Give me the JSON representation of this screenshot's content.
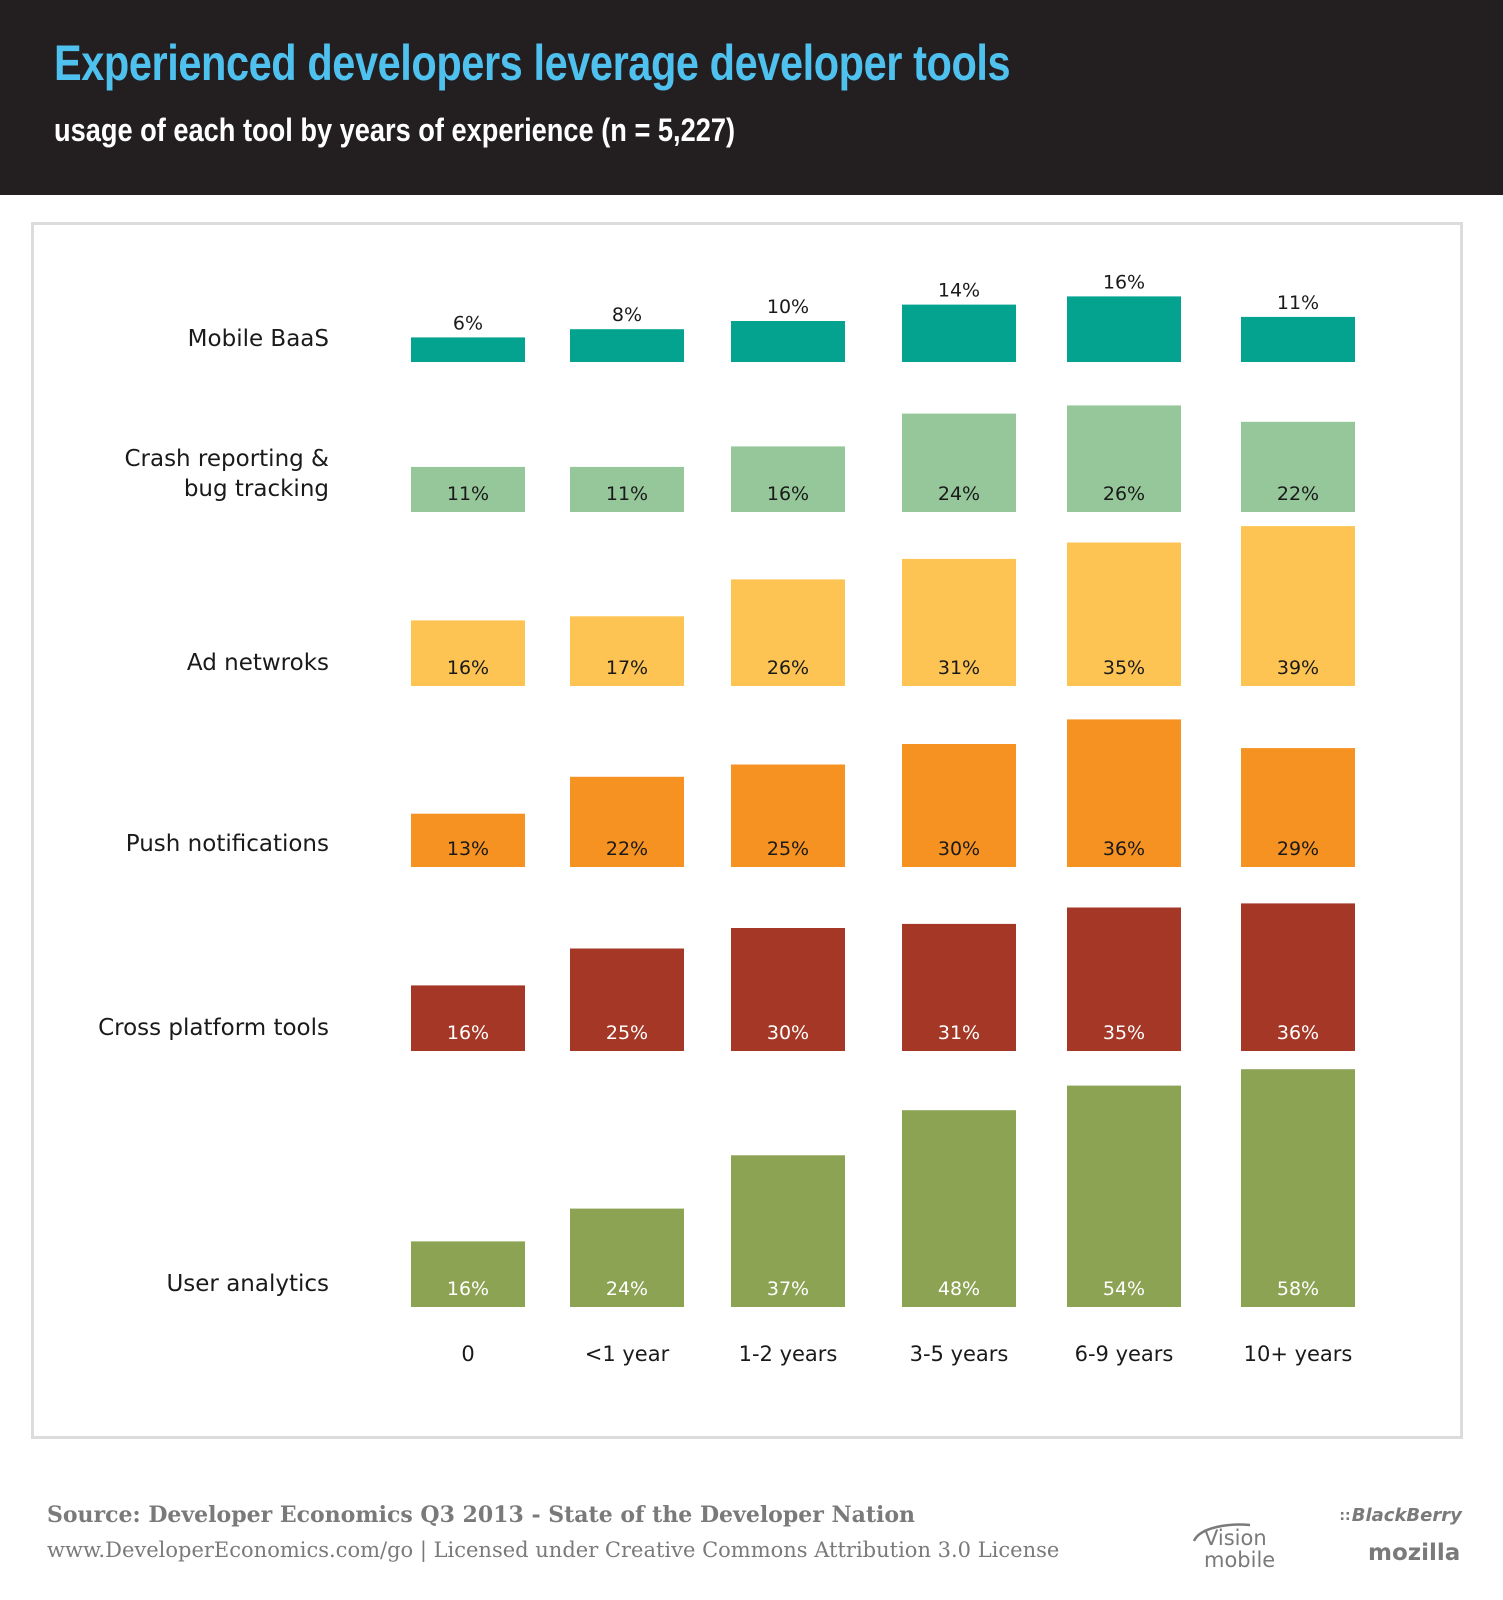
{
  "header": {
    "title": "Experienced developers leverage developer tools",
    "subtitle": "usage of each tool by years of experience (n = 5,227)"
  },
  "chart_data": {
    "type": "bar",
    "layout": "small-multiples",
    "categories": [
      "0",
      "<1 year",
      "1-2 years",
      "3-5 years",
      "6-9 years",
      "10+ years"
    ],
    "series": [
      {
        "name": "Mobile BaaS",
        "label_lines": [
          "Mobile BaaS"
        ],
        "color": "#04a38f",
        "label_color": "#1a1a1a",
        "label_position": "above",
        "values": [
          6,
          8,
          10,
          14,
          16,
          11
        ]
      },
      {
        "name": "Crash reporting & bug tracking",
        "label_lines": [
          "Crash reporting &",
          "bug tracking"
        ],
        "color": "#96c79a",
        "label_color": "#1a1a1a",
        "label_position": "inside",
        "values": [
          11,
          11,
          16,
          24,
          26,
          22
        ]
      },
      {
        "name": "Ad netwroks",
        "label_lines": [
          "Ad netwroks"
        ],
        "color": "#fdc453",
        "label_color": "#1a1a1a",
        "label_position": "inside",
        "values": [
          16,
          17,
          26,
          31,
          35,
          39
        ]
      },
      {
        "name": "Push notifications",
        "label_lines": [
          "Push notifications"
        ],
        "color": "#f69221",
        "label_color": "#1a1a1a",
        "label_position": "inside",
        "values": [
          13,
          22,
          25,
          30,
          36,
          29
        ]
      },
      {
        "name": "Cross platform tools",
        "label_lines": [
          "Cross platform tools"
        ],
        "color": "#a43726",
        "label_color": "#ffffff",
        "label_position": "inside",
        "values": [
          16,
          25,
          30,
          31,
          35,
          36
        ]
      },
      {
        "name": "User analytics",
        "label_lines": [
          "User analytics"
        ],
        "color": "#8ba353",
        "label_color": "#ffffff",
        "label_position": "inside",
        "values": [
          16,
          24,
          37,
          48,
          54,
          58
        ]
      }
    ],
    "value_suffix": "%",
    "title": "Experienced developers leverage developer tools",
    "xlabel": "",
    "ylabel": "",
    "grid": false
  },
  "footer": {
    "source": "Source: Developer Economics Q3 2013 - State of the Developer Nation",
    "license": "www.DeveloperEconomics.com/go | Licensed under Creative Commons Attribution 3.0 License"
  },
  "logos": {
    "vision_line1": "Vision",
    "vision_line2": "mobile",
    "blackberry": "BlackBerry",
    "mozilla": "mozilla"
  }
}
